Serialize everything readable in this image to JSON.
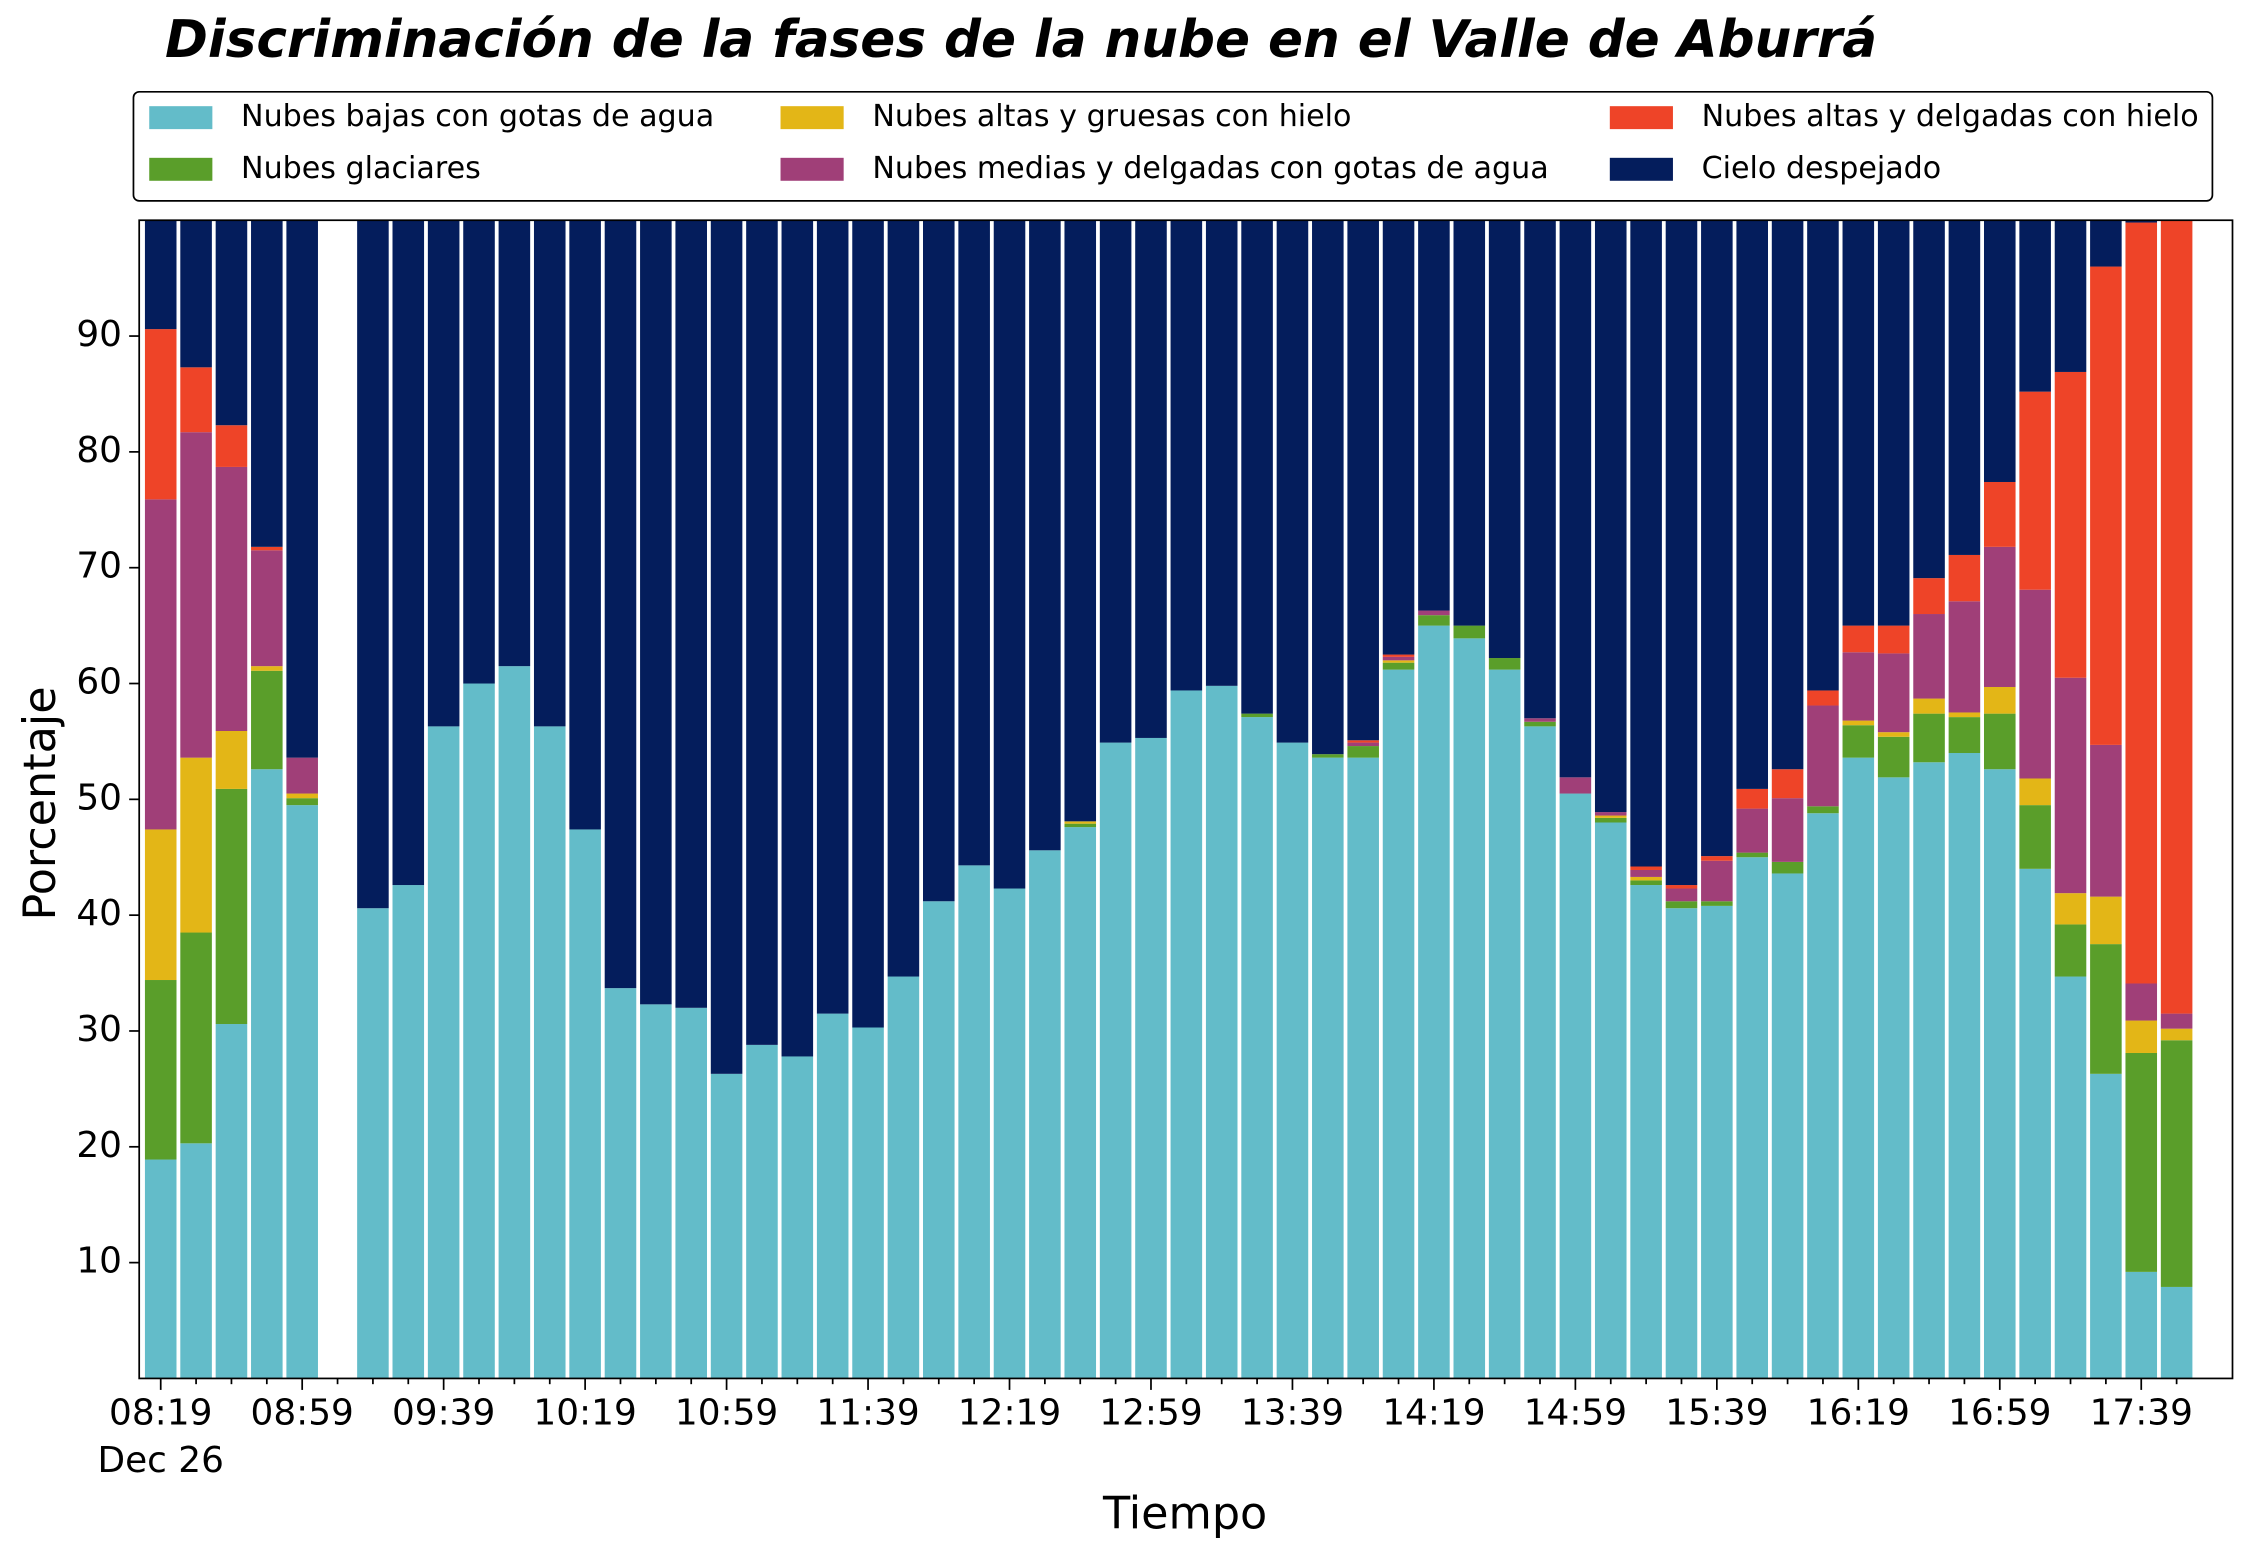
{
  "chart_data": {
    "type": "stacked_bar",
    "title": "Discriminación de la fases de la nube en el Valle de Aburrá",
    "x_label": "Tiempo",
    "y_label": "Porcentaje",
    "x_date_label": "Dec 26",
    "categories": [
      "08:19",
      null,
      null,
      null,
      "08:59",
      null,
      null,
      null,
      "09:39",
      null,
      null,
      null,
      "10:19",
      null,
      null,
      null,
      "10:59",
      null,
      null,
      null,
      "11:39",
      null,
      null,
      null,
      "12:19",
      null,
      null,
      null,
      "12:59",
      null,
      null,
      null,
      "13:39",
      null,
      null,
      null,
      "14:19",
      null,
      null,
      null,
      "14:59",
      null,
      null,
      null,
      "15:39",
      null,
      null,
      null,
      "16:19",
      null,
      null,
      null,
      "16:59",
      null,
      null,
      null,
      "17:39",
      null
    ],
    "ylim": [
      0,
      100
    ],
    "yticks": [
      10,
      20,
      30,
      40,
      50,
      60,
      70,
      80,
      90
    ],
    "legend": "top",
    "series": [
      {
        "name": "Nubes bajas con gotas de agua",
        "color": "#63bcc9",
        "values": [
          18.9,
          20.3,
          30.6,
          52.6,
          49.5,
          null,
          40.6,
          42.6,
          56.3,
          60.0,
          61.5,
          56.3,
          47.4,
          33.7,
          32.3,
          32.0,
          26.3,
          28.8,
          27.8,
          31.5,
          30.3,
          34.7,
          41.2,
          44.3,
          42.3,
          45.6,
          47.6,
          54.9,
          55.3,
          59.4,
          59.8,
          57.1,
          54.9,
          53.6,
          53.6,
          61.2,
          65.0,
          63.9,
          61.2,
          56.3,
          50.5,
          48.0,
          42.6,
          40.6,
          40.8,
          45.0,
          43.6,
          48.8,
          53.6,
          51.9,
          53.2,
          54.0,
          52.6,
          44.0,
          34.7,
          26.3,
          9.2,
          7.9
        ]
      },
      {
        "name": "Nubes glaciares",
        "color": "#5a9e2a",
        "values": [
          15.5,
          18.2,
          20.3,
          8.5,
          0.6,
          null,
          0,
          0,
          0,
          0,
          0,
          0,
          0,
          0,
          0,
          0,
          0,
          0,
          0,
          0,
          0,
          0,
          0,
          0,
          0,
          0,
          0.3,
          0,
          0,
          0,
          0,
          0.3,
          0,
          0.3,
          1.0,
          0.6,
          0.9,
          1.1,
          1.0,
          0.4,
          0,
          0.4,
          0.4,
          0.6,
          0.4,
          0.4,
          1.0,
          0.6,
          2.8,
          3.5,
          4.2,
          3.1,
          4.8,
          5.5,
          4.5,
          11.2,
          18.9,
          21.3
        ]
      },
      {
        "name": "Nubes altas y gruesas con hielo",
        "color": "#e3b617",
        "values": [
          13.0,
          15.1,
          5.0,
          0.4,
          0.4,
          null,
          0,
          0,
          0,
          0,
          0,
          0,
          0,
          0,
          0,
          0,
          0,
          0,
          0,
          0,
          0,
          0,
          0,
          0,
          0,
          0,
          0.2,
          0,
          0,
          0,
          0,
          0,
          0,
          0,
          0,
          0.2,
          0,
          0,
          0,
          0,
          0,
          0.2,
          0.3,
          0,
          0,
          0,
          0,
          0,
          0.4,
          0.4,
          1.3,
          0.4,
          2.3,
          2.3,
          2.7,
          4.1,
          2.8,
          1.0
        ]
      },
      {
        "name": "Nubes medias y delgadas con gotas de agua",
        "color": "#a03f78",
        "values": [
          28.5,
          28.1,
          22.8,
          10.0,
          3.1,
          null,
          0,
          0,
          0,
          0,
          0,
          0,
          0,
          0,
          0,
          0,
          0,
          0,
          0,
          0,
          0,
          0,
          0,
          0,
          0,
          0,
          0,
          0,
          0,
          0,
          0,
          0,
          0,
          0,
          0.3,
          0.3,
          0.4,
          0,
          0,
          0.3,
          1.4,
          0.3,
          0.6,
          1.1,
          3.5,
          3.8,
          5.5,
          8.7,
          5.9,
          6.8,
          7.3,
          9.6,
          12.1,
          16.3,
          18.6,
          13.1,
          3.2,
          1.3
        ]
      },
      {
        "name": "Nubes altas y delgadas con hielo",
        "color": "#ee4428",
        "values": [
          14.7,
          5.6,
          3.6,
          0.3,
          0,
          null,
          0,
          0,
          0,
          0,
          0,
          0,
          0,
          0,
          0,
          0,
          0,
          0,
          0,
          0,
          0,
          0,
          0,
          0,
          0,
          0,
          0,
          0,
          0,
          0,
          0,
          0,
          0,
          0,
          0.2,
          0.2,
          0,
          0,
          0,
          0,
          0,
          0,
          0.3,
          0.3,
          0.4,
          1.7,
          2.5,
          1.3,
          2.3,
          2.4,
          3.1,
          4.0,
          5.6,
          17.1,
          26.4,
          41.3,
          65.7,
          68.5
        ]
      },
      {
        "name": "Cielo despejado",
        "color": "#041d5c",
        "values": [
          9.4,
          12.7,
          17.7,
          28.2,
          46.4,
          null,
          59.4,
          57.4,
          43.7,
          40.0,
          38.5,
          43.7,
          52.6,
          66.3,
          67.7,
          68.0,
          73.7,
          71.2,
          72.2,
          68.5,
          69.7,
          65.3,
          58.8,
          55.7,
          57.7,
          54.4,
          51.9,
          45.1,
          44.7,
          40.6,
          40.2,
          42.6,
          45.1,
          46.1,
          44.9,
          37.5,
          33.7,
          35.0,
          37.8,
          43.0,
          48.1,
          51.1,
          55.8,
          57.4,
          54.9,
          49.1,
          47.4,
          40.6,
          35.0,
          35.0,
          30.9,
          28.9,
          22.6,
          14.8,
          13.1,
          4.0,
          0.2,
          0
        ]
      }
    ]
  }
}
